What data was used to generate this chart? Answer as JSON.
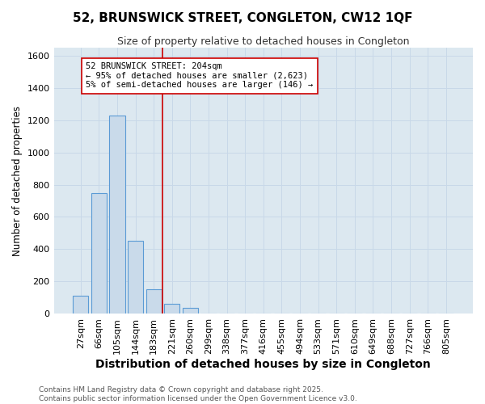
{
  "title": "52, BRUNSWICK STREET, CONGLETON, CW12 1QF",
  "subtitle": "Size of property relative to detached houses in Congleton",
  "xlabel": "Distribution of detached houses by size in Congleton",
  "ylabel": "Number of detached properties",
  "categories": [
    "27sqm",
    "66sqm",
    "105sqm",
    "144sqm",
    "183sqm",
    "221sqm",
    "260sqm",
    "299sqm",
    "338sqm",
    "377sqm",
    "416sqm",
    "455sqm",
    "494sqm",
    "533sqm",
    "571sqm",
    "610sqm",
    "649sqm",
    "688sqm",
    "727sqm",
    "766sqm",
    "805sqm"
  ],
  "values": [
    110,
    750,
    1230,
    450,
    150,
    60,
    35,
    0,
    0,
    0,
    0,
    0,
    0,
    0,
    0,
    0,
    0,
    0,
    0,
    0,
    0
  ],
  "bar_color": "#c9daea",
  "bar_edge_color": "#5b9bd5",
  "bar_linewidth": 0.8,
  "vline_x": 4.5,
  "vline_color": "#cc0000",
  "vline_linewidth": 1.2,
  "annotation_text": "52 BRUNSWICK STREET: 204sqm\n← 95% of detached houses are smaller (2,623)\n5% of semi-detached houses are larger (146) →",
  "box_color": "white",
  "box_edge_color": "#cc0000",
  "ylim": [
    0,
    1650
  ],
  "yticks": [
    0,
    200,
    400,
    600,
    800,
    1000,
    1200,
    1400,
    1600
  ],
  "grid_color": "#c8d8e8",
  "plot_bg_color": "#dce8f0",
  "fig_bg_color": "#ffffff",
  "footer": "Contains HM Land Registry data © Crown copyright and database right 2025.\nContains public sector information licensed under the Open Government Licence v3.0.",
  "title_fontsize": 11,
  "subtitle_fontsize": 9,
  "xlabel_fontsize": 10,
  "ylabel_fontsize": 8.5,
  "tick_fontsize": 8,
  "annotation_fontsize": 7.5,
  "footer_fontsize": 6.5
}
